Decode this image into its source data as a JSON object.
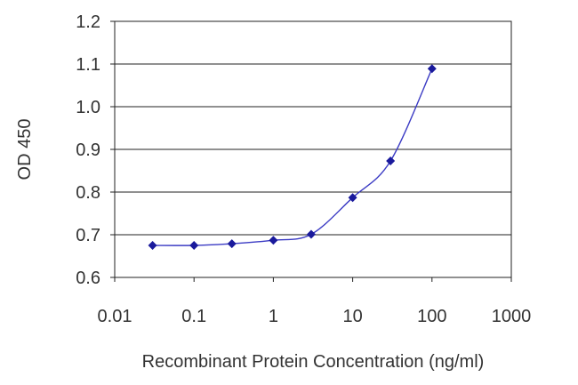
{
  "chart_data": {
    "type": "line",
    "title": "",
    "xlabel": "Recombinant Protein Concentration (ng/ml)",
    "ylabel": "OD 450",
    "x_scale": "log",
    "xlim": [
      0.01,
      1000
    ],
    "ylim": [
      0.6,
      1.2
    ],
    "x_ticks": [
      "0.01",
      "0.1",
      "1",
      "10",
      "100",
      "1000"
    ],
    "y_ticks": [
      "0.6",
      "0.7",
      "0.8",
      "0.9",
      "1.0",
      "1.1",
      "1.2"
    ],
    "grid": "horizontal",
    "legend": "none",
    "series": [
      {
        "color": "#1a1a9c",
        "marker": "diamond",
        "x": [
          0.03,
          0.1,
          0.3,
          1,
          3,
          10,
          30,
          100
        ],
        "y": [
          0.675,
          0.675,
          0.679,
          0.687,
          0.701,
          0.787,
          0.873,
          1.089
        ]
      }
    ]
  }
}
